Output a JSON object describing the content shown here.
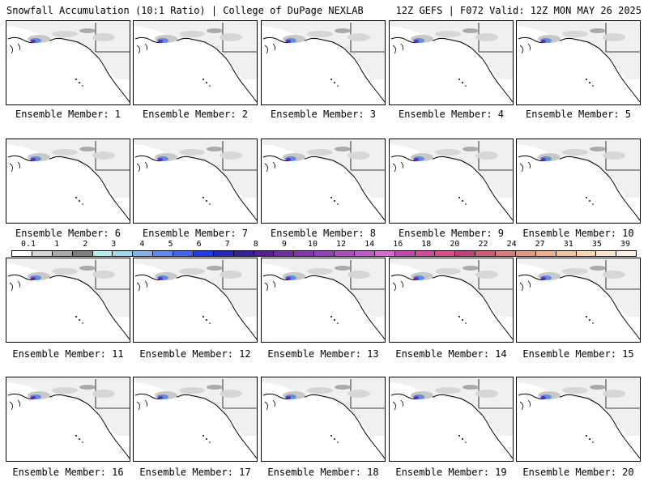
{
  "header": {
    "left": "Snowfall Accumulation (10:1 Ratio) | College of DuPage NEXLAB",
    "right": "12Z GEFS | F072 Valid: 12Z MON MAY 26 2025"
  },
  "panels": [
    {
      "caption": "Ensemble Member: 1"
    },
    {
      "caption": "Ensemble Member: 2"
    },
    {
      "caption": "Ensemble Member: 3"
    },
    {
      "caption": "Ensemble Member: 4"
    },
    {
      "caption": "Ensemble Member: 5"
    },
    {
      "caption": "Ensemble Member: 6"
    },
    {
      "caption": "Ensemble Member: 7"
    },
    {
      "caption": "Ensemble Member: 8"
    },
    {
      "caption": "Ensemble Member: 9"
    },
    {
      "caption": "Ensemble Member: 10"
    },
    {
      "caption": "Ensemble Member: 11"
    },
    {
      "caption": "Ensemble Member: 12"
    },
    {
      "caption": "Ensemble Member: 13"
    },
    {
      "caption": "Ensemble Member: 14"
    },
    {
      "caption": "Ensemble Member: 15"
    },
    {
      "caption": "Ensemble Member: 16"
    },
    {
      "caption": "Ensemble Member: 17"
    },
    {
      "caption": "Ensemble Member: 18"
    },
    {
      "caption": "Ensemble Member: 19"
    },
    {
      "caption": "Ensemble Member: 20"
    }
  ],
  "colorbar": {
    "labels": [
      "0.1",
      "1",
      "2",
      "3",
      "4",
      "5",
      "6",
      "7",
      "8",
      "9",
      "10",
      "12",
      "14",
      "16",
      "18",
      "20",
      "22",
      "24",
      "27",
      "31",
      "35",
      "39"
    ],
    "colors": [
      "#ffffff",
      "#d6d6d6",
      "#aaaaaa",
      "#7f7f7f",
      "#aeeeee",
      "#9ed8f0",
      "#7db4f0",
      "#5a8cf0",
      "#3a66f0",
      "#1a3cf0",
      "#2626c8",
      "#3a1ea0",
      "#5a1e9a",
      "#6e2aa8",
      "#8632b4",
      "#9a3cc0",
      "#b048c8",
      "#c656d0",
      "#d866d8",
      "#c846b4",
      "#d2489e",
      "#dc4a8c",
      "#c43c7a",
      "#d05a78",
      "#dc7a7a",
      "#e6967c",
      "#eeae88",
      "#f4c49a",
      "#f8d6b0",
      "#fae4c8",
      "#fdf0de"
    ]
  }
}
